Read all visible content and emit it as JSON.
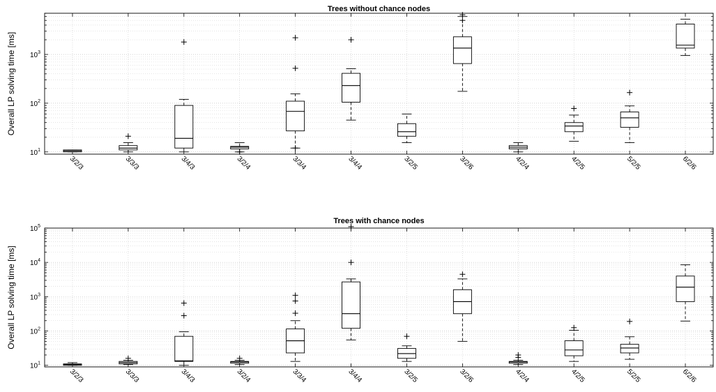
{
  "chart_data": [
    {
      "type": "box",
      "title": "Trees without chance nodes",
      "ylabel": "Overall LP solving time [ms]",
      "yscale": "log",
      "ylim": [
        9,
        7000
      ],
      "yticks": [
        10,
        100,
        1000
      ],
      "ytick_labels": [
        [
          "10",
          "1"
        ],
        [
          "10",
          "2"
        ],
        [
          "10",
          "3"
        ]
      ],
      "grid": true,
      "categories": [
        "3/2/3",
        "3/3/3",
        "3/4/3",
        "3/2/4",
        "3/3/4",
        "3/4/4",
        "3/2/5",
        "3/2/6",
        "4/2/4",
        "4/2/5",
        "5/2/5",
        "6/2/6"
      ],
      "boxes": [
        {
          "whisker_low": 10,
          "q1": 10,
          "median": 10.5,
          "q3": 11,
          "whisker_high": 11,
          "outliers": []
        },
        {
          "whisker_low": 10,
          "q1": 11,
          "median": 12,
          "q3": 13.5,
          "whisker_high": 15.5,
          "outliers": [
            21
          ]
        },
        {
          "whisker_low": 10,
          "q1": 12,
          "median": 19,
          "q3": 90,
          "whisker_high": 120,
          "outliers": [
            1800
          ]
        },
        {
          "whisker_low": 10,
          "q1": 11.5,
          "median": 12.5,
          "q3": 13,
          "whisker_high": 15.5,
          "outliers": [
            10
          ]
        },
        {
          "whisker_low": 12,
          "q1": 27,
          "median": 68,
          "q3": 110,
          "whisker_high": 155,
          "outliers": [
            12,
            520,
            2200
          ]
        },
        {
          "whisker_low": 45,
          "q1": 105,
          "median": 230,
          "q3": 410,
          "whisker_high": 510,
          "outliers": [
            2000
          ]
        },
        {
          "whisker_low": 15.5,
          "q1": 21,
          "median": 26,
          "q3": 38,
          "whisker_high": 60,
          "outliers": []
        },
        {
          "whisker_low": 175,
          "q1": 650,
          "median": 1350,
          "q3": 2300,
          "whisker_high": 6000,
          "outliers": [
            5000,
            6500
          ]
        },
        {
          "whisker_low": 10,
          "q1": 11.5,
          "median": 12.5,
          "q3": 13.5,
          "whisker_high": 15.5,
          "outliers": []
        },
        {
          "whisker_low": 16.5,
          "q1": 26,
          "median": 34,
          "q3": 40,
          "whisker_high": 57,
          "outliers": [
            78
          ]
        },
        {
          "whisker_low": 15.5,
          "q1": 32,
          "median": 50,
          "q3": 66,
          "whisker_high": 88,
          "outliers": [
            165
          ]
        },
        {
          "whisker_low": 950,
          "q1": 1350,
          "median": 1550,
          "q3": 4200,
          "whisker_high": 5300,
          "outliers": []
        }
      ]
    },
    {
      "type": "box",
      "title": "Trees with chance nodes",
      "ylabel": "Overall LP solving time [ms]",
      "yscale": "log",
      "ylim": [
        9,
        100000
      ],
      "yticks": [
        10,
        100,
        1000,
        10000,
        100000
      ],
      "ytick_labels": [
        [
          "10",
          "1"
        ],
        [
          "10",
          "2"
        ],
        [
          "10",
          "3"
        ],
        [
          "10",
          "4"
        ],
        [
          "10",
          "5"
        ]
      ],
      "grid": true,
      "categories": [
        "3/2/3",
        "3/3/3",
        "3/4/3",
        "3/2/4",
        "3/3/4",
        "3/4/4",
        "3/2/5",
        "3/2/6",
        "4/2/4",
        "4/2/5",
        "5/2/5",
        "6/2/6"
      ],
      "boxes": [
        {
          "whisker_low": 10,
          "q1": 10,
          "median": 10.5,
          "q3": 11,
          "whisker_high": 12,
          "outliers": []
        },
        {
          "whisker_low": 10.5,
          "q1": 11,
          "median": 12,
          "q3": 13,
          "whisker_high": 14,
          "outliers": [
            16
          ]
        },
        {
          "whisker_low": 10,
          "q1": 13,
          "median": 13.5,
          "q3": 70,
          "whisker_high": 95,
          "outliers": [
            280,
            650
          ]
        },
        {
          "whisker_low": 10.5,
          "q1": 11.5,
          "median": 12.5,
          "q3": 13,
          "whisker_high": 14,
          "outliers": [
            16
          ]
        },
        {
          "whisker_low": 13,
          "q1": 23,
          "median": 52,
          "q3": 115,
          "whisker_high": 200,
          "outliers": [
            330,
            750,
            1100
          ]
        },
        {
          "whisker_low": 55,
          "q1": 120,
          "median": 320,
          "q3": 2700,
          "whisker_high": 3300,
          "outliers": [
            10000,
            110000
          ]
        },
        {
          "whisker_low": 13,
          "q1": 16,
          "median": 22,
          "q3": 31,
          "whisker_high": 37,
          "outliers": [
            70
          ]
        },
        {
          "whisker_low": 50,
          "q1": 320,
          "median": 720,
          "q3": 1600,
          "whisker_high": 3300,
          "outliers": [
            4500
          ]
        },
        {
          "whisker_low": 10.5,
          "q1": 11.5,
          "median": 12.5,
          "q3": 13,
          "whisker_high": 14,
          "outliers": [
            17,
            20
          ]
        },
        {
          "whisker_low": 13,
          "q1": 19,
          "median": 28,
          "q3": 52,
          "whisker_high": 105,
          "outliers": [
            125
          ]
        },
        {
          "whisker_low": 15,
          "q1": 23,
          "median": 32,
          "q3": 41,
          "whisker_high": 68,
          "outliers": [
            190
          ]
        },
        {
          "whisker_low": 195,
          "q1": 720,
          "median": 1900,
          "q3": 4000,
          "whisker_high": 8500,
          "outliers": []
        }
      ]
    }
  ]
}
